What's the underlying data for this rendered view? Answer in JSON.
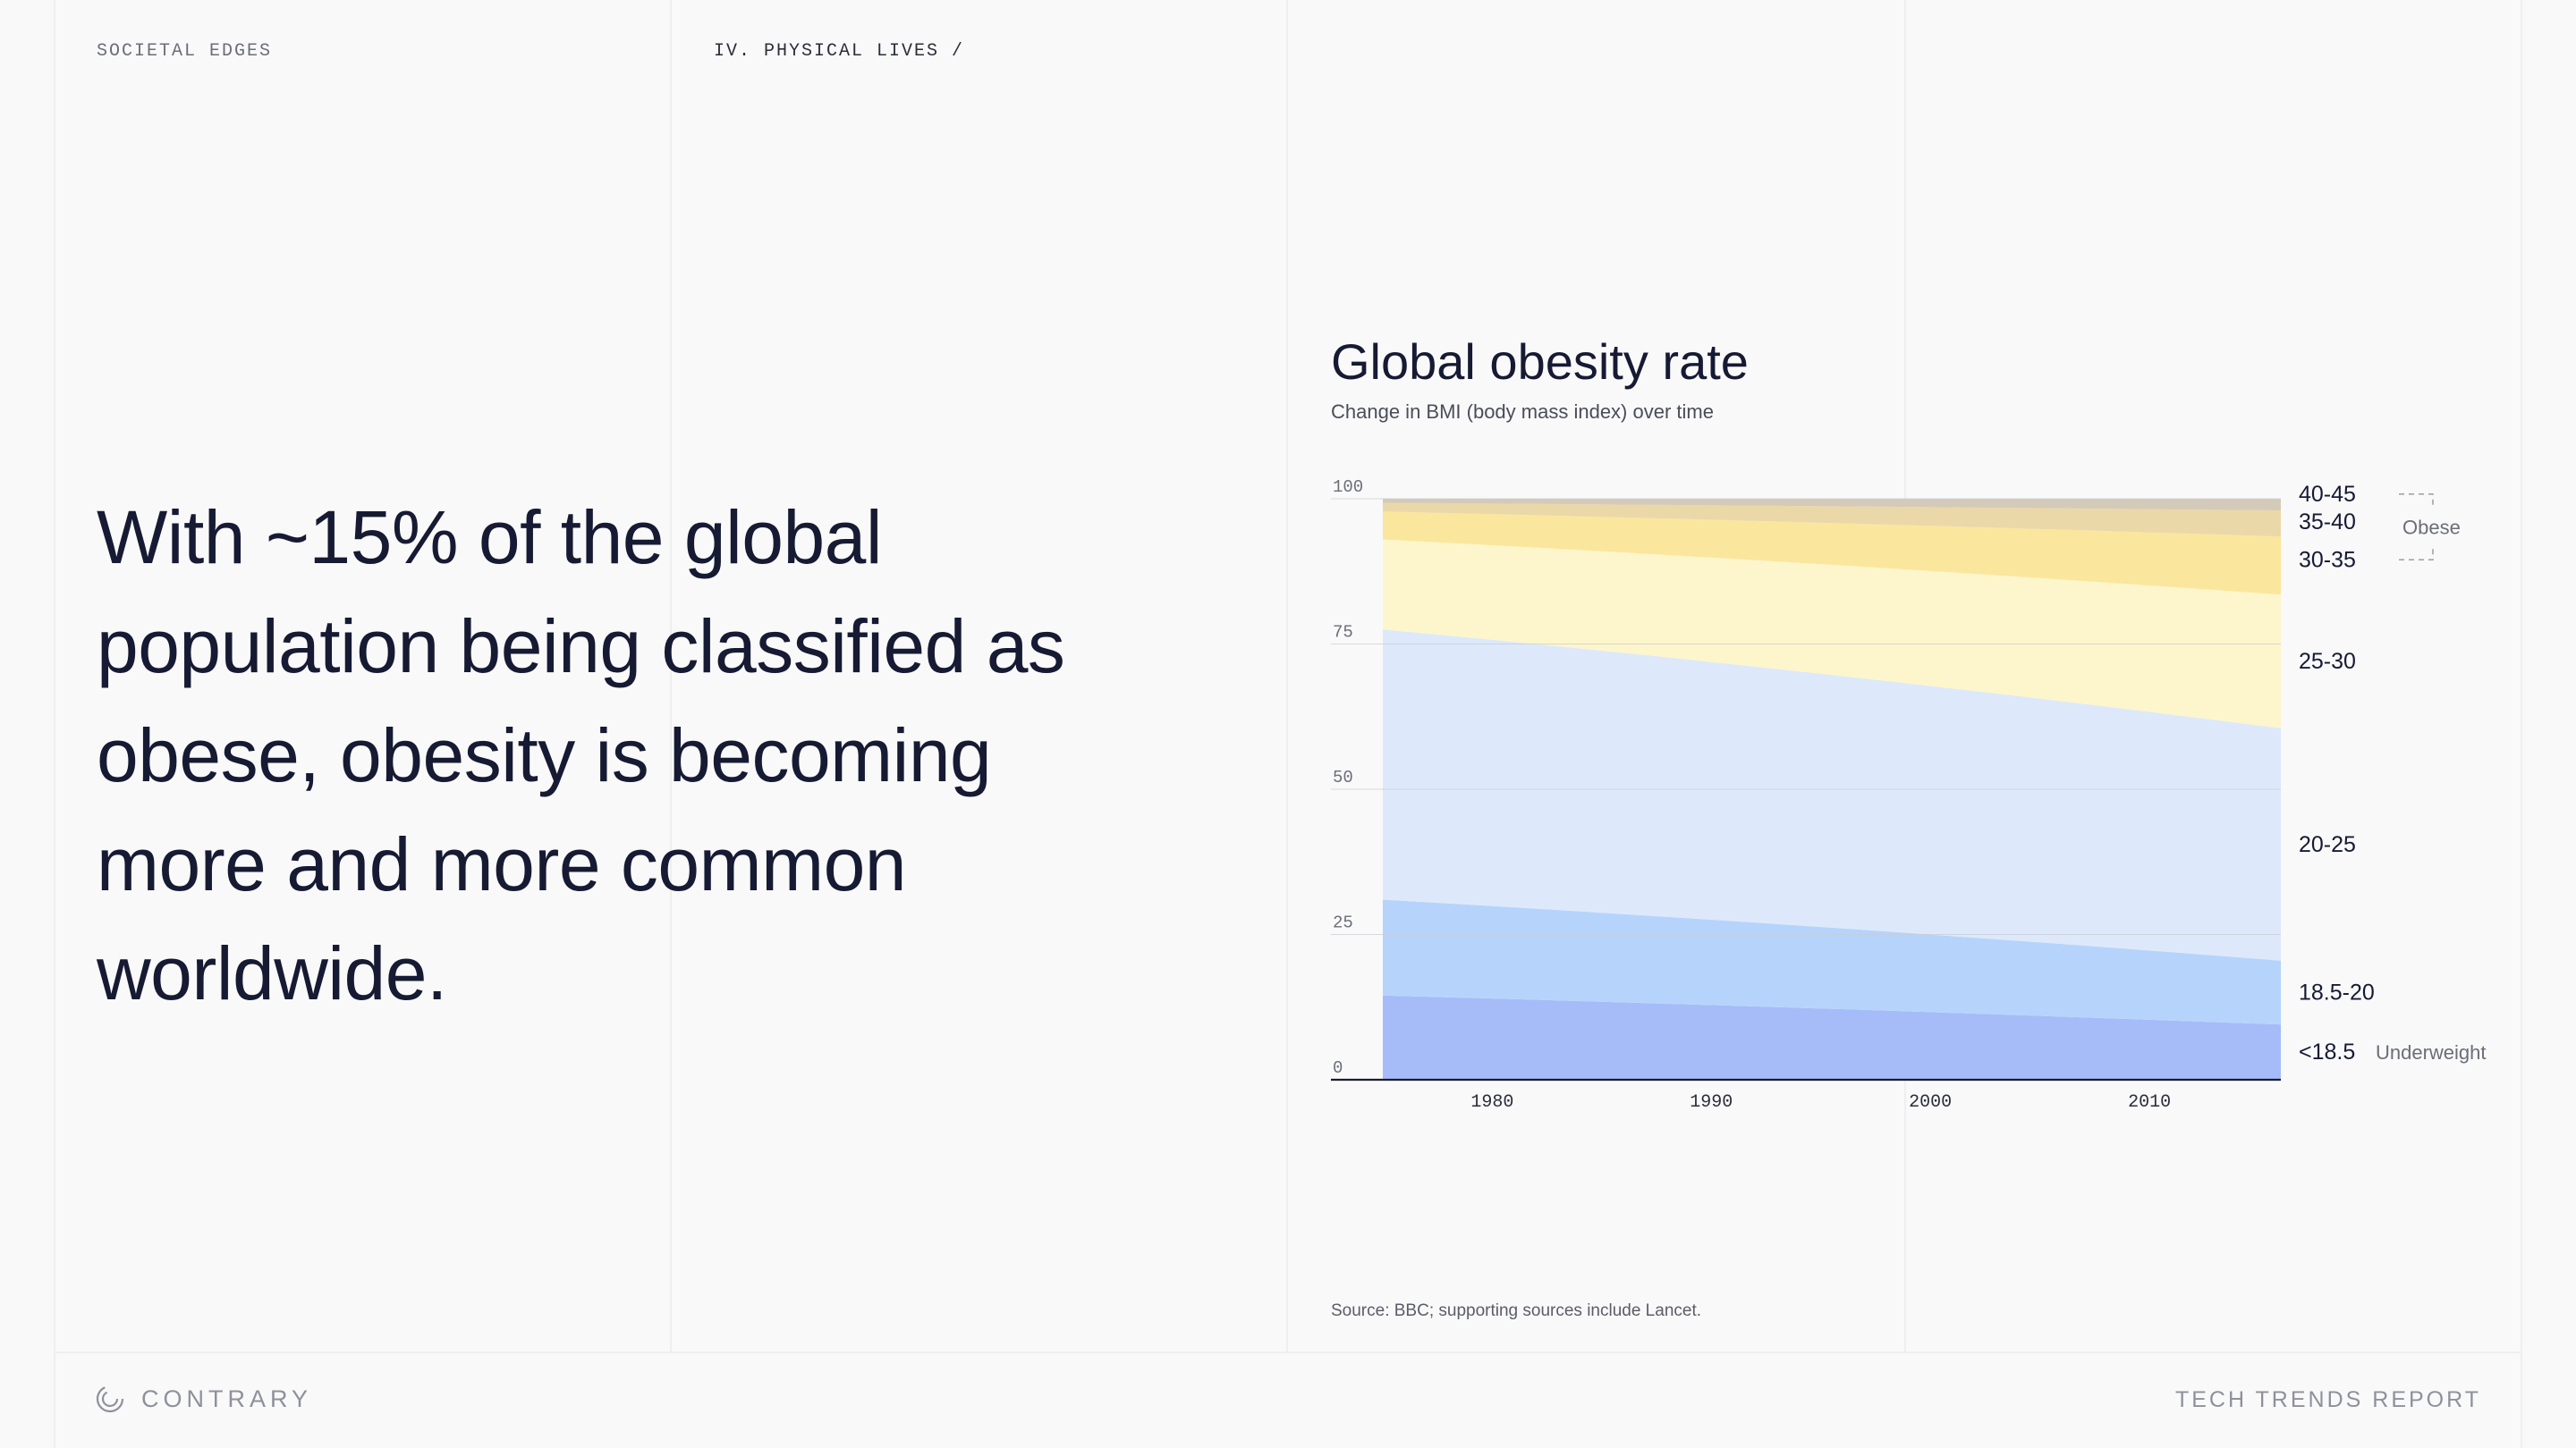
{
  "header": {
    "section": "SOCIETAL EDGES",
    "chapter": "IV. PHYSICAL LIVES /"
  },
  "headline": "With ~15% of the global population being classified as obese, obesity is becoming more and more common worldwide.",
  "chart_data": {
    "type": "area",
    "title": "Global obesity rate",
    "subtitle": "Change in BMI (body mass index) over time",
    "x": [
      1975,
      2016
    ],
    "xticks": [
      1980,
      1990,
      2000,
      2010
    ],
    "yticks": [
      0,
      25,
      50,
      75,
      100
    ],
    "ylim": [
      0,
      100
    ],
    "stacked": true,
    "series": [
      {
        "name": "<18.5",
        "values": [
          14.5,
          9.5
        ],
        "color": "#a6bcf8"
      },
      {
        "name": "18.5-20",
        "values": [
          16.5,
          11.0
        ],
        "color": "#b6d4fb"
      },
      {
        "name": "20-25",
        "values": [
          46.5,
          40.0
        ],
        "color": "#dde9fb"
      },
      {
        "name": "25-30",
        "values": [
          15.5,
          23.0
        ],
        "color": "#fdf6cc"
      },
      {
        "name": "30-35",
        "values": [
          4.8,
          10.0
        ],
        "color": "#fbe69e"
      },
      {
        "name": "35-40",
        "values": [
          1.5,
          4.5
        ],
        "color": "#ead8a8"
      },
      {
        "name": "40-45",
        "values": [
          0.7,
          2.0
        ],
        "color": "#d4cab9"
      }
    ],
    "annotations": {
      "obese": "Obese",
      "underweight": "Underweight"
    },
    "source": "Source: BBC; supporting sources include Lancet."
  },
  "footer": {
    "brand": "CONTRARY",
    "report": "TECH TRENDS REPORT"
  },
  "colors": {
    "text": "#161a33",
    "muted": "#8e919b",
    "grid": "#dcdcdc"
  }
}
